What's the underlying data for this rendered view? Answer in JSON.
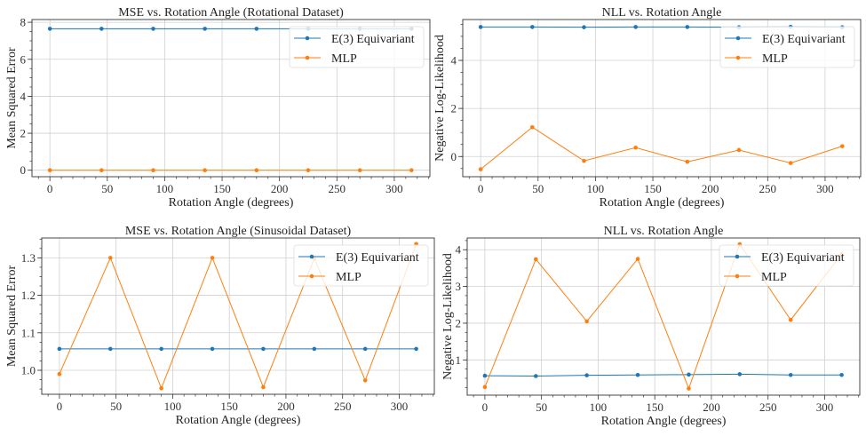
{
  "chart_data": [
    {
      "type": "line",
      "title": "MSE vs. Rotation Angle (Rotational Dataset)",
      "xlabel": "Rotation Angle (degrees)",
      "ylabel": "Mean Squared Error",
      "x": [
        0,
        45,
        90,
        135,
        180,
        225,
        270,
        315
      ],
      "xlim": [
        -15.6,
        331
      ],
      "ylim": [
        -0.35,
        8.15
      ],
      "xticks": [
        0,
        50,
        100,
        150,
        200,
        250,
        300
      ],
      "yticks": [
        0,
        2,
        4,
        6,
        8
      ],
      "ytick_labels": [
        "0",
        "2",
        "4",
        "6",
        "8"
      ],
      "grid": true,
      "legend": "upper-right",
      "series": [
        {
          "name": "E(3) Equivariant",
          "color": "#1f77b4",
          "values": [
            7.65,
            7.65,
            7.65,
            7.65,
            7.65,
            7.65,
            7.65,
            7.65
          ]
        },
        {
          "name": "MLP",
          "color": "#ff7f0e",
          "values": [
            0.0,
            0.0,
            0.0,
            0.0,
            0.0,
            0.0,
            0.0,
            0.0
          ]
        }
      ]
    },
    {
      "type": "line",
      "title": "NLL vs. Rotation Angle",
      "xlabel": "Rotation Angle (degrees)",
      "ylabel": "Negative Log-Likelihood",
      "x": [
        0,
        45,
        90,
        135,
        180,
        225,
        270,
        315
      ],
      "xlim": [
        -15.6,
        331
      ],
      "ylim": [
        -0.84,
        5.7
      ],
      "xticks": [
        0,
        50,
        100,
        150,
        200,
        250,
        300
      ],
      "yticks": [
        0,
        2,
        4
      ],
      "ytick_labels": [
        "0",
        "2",
        "4"
      ],
      "grid": true,
      "legend": "upper-right",
      "series": [
        {
          "name": "E(3) Equivariant",
          "color": "#1f77b4",
          "values": [
            5.39,
            5.39,
            5.38,
            5.39,
            5.39,
            5.38,
            5.4,
            5.38
          ]
        },
        {
          "name": "MLP",
          "color": "#ff7f0e",
          "values": [
            -0.53,
            1.22,
            -0.18,
            0.37,
            -0.22,
            0.27,
            -0.27,
            0.43
          ]
        }
      ]
    },
    {
      "type": "line",
      "title": "MSE vs. Rotation Angle (Sinusoidal Dataset)",
      "xlabel": "Rotation Angle (degrees)",
      "ylabel": "Mean Squared Error",
      "x": [
        0,
        45,
        90,
        135,
        180,
        225,
        270,
        315
      ],
      "xlim": [
        -15.6,
        331
      ],
      "ylim": [
        0.936,
        1.353
      ],
      "xticks": [
        0,
        50,
        100,
        150,
        200,
        250,
        300
      ],
      "yticks": [
        1.0,
        1.1,
        1.2,
        1.3
      ],
      "ytick_labels": [
        "1.0",
        "1.1",
        "1.2",
        "1.3"
      ],
      "grid": true,
      "legend": "upper-right",
      "series": [
        {
          "name": "E(3) Equivariant",
          "color": "#1f77b4",
          "values": [
            1.057,
            1.057,
            1.057,
            1.057,
            1.057,
            1.057,
            1.057,
            1.057
          ]
        },
        {
          "name": "MLP",
          "color": "#ff7f0e",
          "values": [
            0.99,
            1.3,
            0.952,
            1.3,
            0.955,
            1.298,
            0.973,
            1.337
          ]
        }
      ]
    },
    {
      "type": "line",
      "title": "NLL vs. Rotation Angle",
      "xlabel": "Rotation Angle (degrees)",
      "ylabel": "Negative Log-Likelihood",
      "x": [
        0,
        45,
        90,
        135,
        180,
        225,
        270,
        315
      ],
      "xlim": [
        -15.6,
        331
      ],
      "ylim": [
        0.04,
        4.32
      ],
      "xticks": [
        0,
        50,
        100,
        150,
        200,
        250,
        300
      ],
      "yticks": [
        1,
        2,
        3,
        4
      ],
      "ytick_labels": [
        "1",
        "2",
        "3",
        "4"
      ],
      "grid": true,
      "legend": "upper-right",
      "series": [
        {
          "name": "E(3) Equivariant",
          "color": "#1f77b4",
          "values": [
            0.57,
            0.56,
            0.58,
            0.59,
            0.6,
            0.61,
            0.59,
            0.59
          ]
        },
        {
          "name": "MLP",
          "color": "#ff7f0e",
          "values": [
            0.26,
            3.74,
            2.05,
            3.75,
            0.22,
            4.15,
            2.09,
            3.88
          ]
        }
      ]
    }
  ]
}
